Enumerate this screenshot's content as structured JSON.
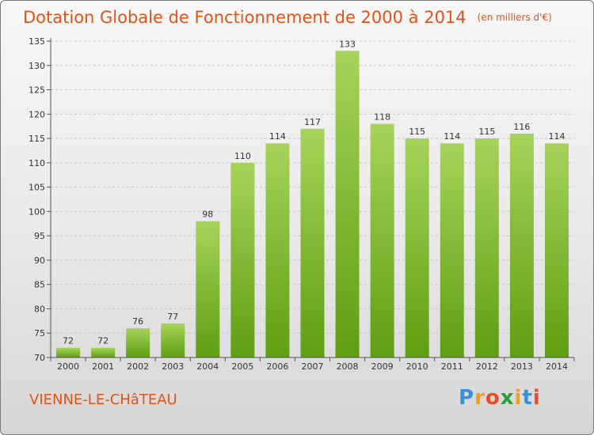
{
  "header": {
    "title": "Dotation Globale de Fonctionnement de 2000 à 2014",
    "unit": "(en milliers d'€)"
  },
  "footer": {
    "commune": "VIENNE-LE-CHâTEAU",
    "logo": "Proxiti"
  },
  "colors": {
    "title": "#e0541c",
    "bar_top": "#a6d35a",
    "bar_bottom": "#5f9e12"
  },
  "chart_data": {
    "type": "bar",
    "categories": [
      "2000",
      "2001",
      "2002",
      "2003",
      "2004",
      "2005",
      "2006",
      "2007",
      "2008",
      "2009",
      "2010",
      "2011",
      "2012",
      "2013",
      "2014"
    ],
    "values": [
      72,
      72,
      76,
      77,
      98,
      110,
      114,
      117,
      133,
      118,
      115,
      114,
      115,
      116,
      114
    ],
    "title": "Dotation Globale de Fonctionnement de 2000 à 2014",
    "ylabel": "(en milliers d'€)",
    "ylim": [
      70,
      135
    ],
    "yticks": [
      70,
      75,
      80,
      85,
      90,
      95,
      100,
      105,
      110,
      115,
      120,
      125,
      130,
      135
    ],
    "grid": "horizontal dashed",
    "legend": "none"
  }
}
